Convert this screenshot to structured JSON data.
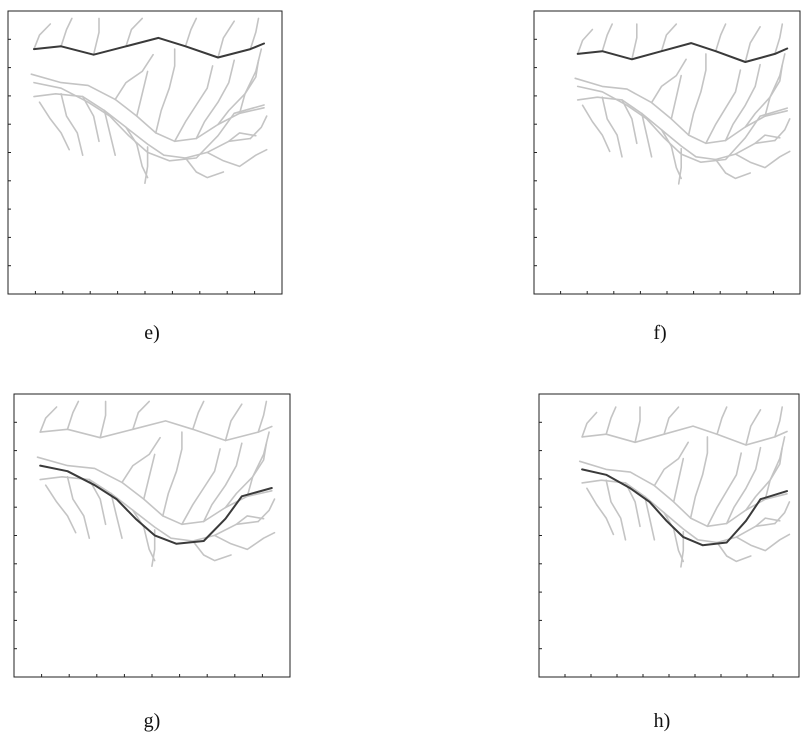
{
  "figure": {
    "panels": [
      {
        "id": "e",
        "caption": "e)",
        "highlight": "upper-branch"
      },
      {
        "id": "f",
        "caption": "f)",
        "highlight": "upper-branch"
      },
      {
        "id": "g",
        "caption": "g)",
        "highlight": "lower-branch"
      },
      {
        "id": "h",
        "caption": "h)",
        "highlight": "lower-branch"
      }
    ],
    "colors": {
      "network": "#c4c4c4",
      "highlight": "#3a3a3a",
      "axis": "#222222"
    }
  }
}
